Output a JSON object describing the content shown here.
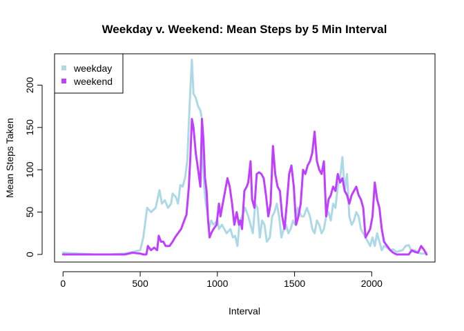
{
  "chart_data": {
    "type": "line",
    "title": "Weekday v. Weekend: Mean Steps by 5 Min Interval",
    "xlabel": "Interval",
    "ylabel": "Mean Steps Taken",
    "xlim": [
      -55,
      2410
    ],
    "ylim": [
      -9,
      237
    ],
    "xticks": [
      0,
      500,
      1000,
      1500,
      2000
    ],
    "yticks": [
      0,
      50,
      100,
      150,
      200
    ],
    "grid": false,
    "legend_position": "top-left",
    "series": [
      {
        "name": "weekday",
        "color": "#ADD8E6",
        "points": [
          [
            0,
            2
          ],
          [
            100,
            1
          ],
          [
            200,
            0
          ],
          [
            300,
            0
          ],
          [
            400,
            1
          ],
          [
            450,
            3
          ],
          [
            500,
            5
          ],
          [
            520,
            20
          ],
          [
            545,
            55
          ],
          [
            570,
            50
          ],
          [
            600,
            55
          ],
          [
            625,
            76
          ],
          [
            640,
            60
          ],
          [
            660,
            64
          ],
          [
            680,
            55
          ],
          [
            700,
            60
          ],
          [
            710,
            72
          ],
          [
            730,
            68
          ],
          [
            745,
            60
          ],
          [
            760,
            82
          ],
          [
            775,
            80
          ],
          [
            790,
            90
          ],
          [
            805,
            110
          ],
          [
            815,
            155
          ],
          [
            825,
            195
          ],
          [
            835,
            230
          ],
          [
            845,
            190
          ],
          [
            860,
            185
          ],
          [
            875,
            175
          ],
          [
            890,
            170
          ],
          [
            900,
            160
          ],
          [
            905,
            110
          ],
          [
            915,
            80
          ],
          [
            925,
            60
          ],
          [
            935,
            50
          ],
          [
            945,
            30
          ],
          [
            960,
            40
          ],
          [
            975,
            35
          ],
          [
            990,
            38
          ],
          [
            1000,
            41
          ],
          [
            1010,
            30
          ],
          [
            1030,
            35
          ],
          [
            1060,
            25
          ],
          [
            1085,
            30
          ],
          [
            1100,
            20
          ],
          [
            1115,
            22
          ],
          [
            1130,
            10
          ],
          [
            1145,
            40
          ],
          [
            1160,
            45
          ],
          [
            1180,
            55
          ],
          [
            1200,
            45
          ],
          [
            1215,
            35
          ],
          [
            1230,
            25
          ],
          [
            1245,
            60
          ],
          [
            1260,
            55
          ],
          [
            1275,
            20
          ],
          [
            1290,
            40
          ],
          [
            1305,
            35
          ],
          [
            1320,
            15
          ],
          [
            1340,
            20
          ],
          [
            1355,
            45
          ],
          [
            1370,
            50
          ],
          [
            1385,
            60
          ],
          [
            1400,
            45
          ],
          [
            1415,
            20
          ],
          [
            1430,
            30
          ],
          [
            1445,
            35
          ],
          [
            1460,
            25
          ],
          [
            1475,
            30
          ],
          [
            1490,
            40
          ],
          [
            1505,
            35
          ],
          [
            1520,
            55
          ],
          [
            1545,
            45
          ],
          [
            1560,
            45
          ],
          [
            1580,
            55
          ],
          [
            1600,
            45
          ],
          [
            1615,
            30
          ],
          [
            1630,
            25
          ],
          [
            1645,
            40
          ],
          [
            1660,
            35
          ],
          [
            1675,
            25
          ],
          [
            1690,
            30
          ],
          [
            1705,
            45
          ],
          [
            1720,
            50
          ],
          [
            1735,
            40
          ],
          [
            1750,
            60
          ],
          [
            1765,
            55
          ],
          [
            1780,
            80
          ],
          [
            1795,
            90
          ],
          [
            1810,
            115
          ],
          [
            1825,
            75
          ],
          [
            1840,
            95
          ],
          [
            1855,
            45
          ],
          [
            1870,
            35
          ],
          [
            1885,
            40
          ],
          [
            1900,
            50
          ],
          [
            1915,
            45
          ],
          [
            1930,
            30
          ],
          [
            1945,
            25
          ],
          [
            1960,
            20
          ],
          [
            1975,
            15
          ],
          [
            1990,
            10
          ],
          [
            2005,
            20
          ],
          [
            2020,
            10
          ],
          [
            2035,
            25
          ],
          [
            2050,
            15
          ],
          [
            2065,
            5
          ],
          [
            2080,
            10
          ],
          [
            2100,
            8
          ],
          [
            2120,
            5
          ],
          [
            2140,
            6
          ],
          [
            2160,
            3
          ],
          [
            2180,
            4
          ],
          [
            2200,
            5
          ],
          [
            2220,
            10
          ],
          [
            2240,
            11
          ],
          [
            2260,
            3
          ],
          [
            2280,
            5
          ],
          [
            2300,
            2
          ],
          [
            2320,
            1
          ],
          [
            2340,
            1
          ],
          [
            2355,
            2
          ]
        ]
      },
      {
        "name": "weekend",
        "color": "#BF3EFF",
        "points": [
          [
            0,
            0
          ],
          [
            100,
            0
          ],
          [
            200,
            0
          ],
          [
            300,
            0
          ],
          [
            400,
            0
          ],
          [
            450,
            2
          ],
          [
            500,
            1
          ],
          [
            520,
            0
          ],
          [
            540,
            0
          ],
          [
            550,
            10
          ],
          [
            570,
            5
          ],
          [
            590,
            8
          ],
          [
            610,
            5
          ],
          [
            620,
            22
          ],
          [
            635,
            15
          ],
          [
            650,
            15
          ],
          [
            665,
            10
          ],
          [
            690,
            10
          ],
          [
            710,
            15
          ],
          [
            725,
            20
          ],
          [
            745,
            25
          ],
          [
            765,
            30
          ],
          [
            785,
            40
          ],
          [
            800,
            47
          ],
          [
            815,
            80
          ],
          [
            825,
            115
          ],
          [
            835,
            160
          ],
          [
            845,
            150
          ],
          [
            860,
            120
          ],
          [
            875,
            100
          ],
          [
            890,
            80
          ],
          [
            900,
            160
          ],
          [
            910,
            135
          ],
          [
            920,
            90
          ],
          [
            930,
            75
          ],
          [
            940,
            40
          ],
          [
            950,
            20
          ],
          [
            960,
            25
          ],
          [
            975,
            30
          ],
          [
            995,
            35
          ],
          [
            1010,
            60
          ],
          [
            1020,
            45
          ],
          [
            1030,
            55
          ],
          [
            1045,
            70
          ],
          [
            1065,
            90
          ],
          [
            1080,
            80
          ],
          [
            1095,
            60
          ],
          [
            1110,
            35
          ],
          [
            1125,
            50
          ],
          [
            1140,
            35
          ],
          [
            1150,
            40
          ],
          [
            1160,
            30
          ],
          [
            1175,
            75
          ],
          [
            1190,
            80
          ],
          [
            1200,
            85
          ],
          [
            1215,
            110
          ],
          [
            1225,
            65
          ],
          [
            1240,
            55
          ],
          [
            1255,
            95
          ],
          [
            1270,
            97
          ],
          [
            1285,
            95
          ],
          [
            1300,
            90
          ],
          [
            1315,
            70
          ],
          [
            1330,
            45
          ],
          [
            1345,
            60
          ],
          [
            1360,
            128
          ],
          [
            1375,
            95
          ],
          [
            1390,
            80
          ],
          [
            1405,
            75
          ],
          [
            1420,
            45
          ],
          [
            1435,
            30
          ],
          [
            1450,
            60
          ],
          [
            1465,
            95
          ],
          [
            1480,
            105
          ],
          [
            1495,
            80
          ],
          [
            1510,
            35
          ],
          [
            1525,
            45
          ],
          [
            1540,
            60
          ],
          [
            1555,
            100
          ],
          [
            1570,
            95
          ],
          [
            1585,
            105
          ],
          [
            1600,
            110
          ],
          [
            1615,
            120
          ],
          [
            1630,
            145
          ],
          [
            1645,
            110
          ],
          [
            1660,
            100
          ],
          [
            1675,
            95
          ],
          [
            1690,
            110
          ],
          [
            1705,
            45
          ],
          [
            1720,
            65
          ],
          [
            1735,
            70
          ],
          [
            1750,
            80
          ],
          [
            1765,
            75
          ],
          [
            1780,
            95
          ],
          [
            1795,
            85
          ],
          [
            1810,
            90
          ],
          [
            1825,
            75
          ],
          [
            1840,
            70
          ],
          [
            1855,
            60
          ],
          [
            1870,
            70
          ],
          [
            1885,
            75
          ],
          [
            1900,
            80
          ],
          [
            1915,
            70
          ],
          [
            1930,
            65
          ],
          [
            1945,
            55
          ],
          [
            1960,
            20
          ],
          [
            1975,
            25
          ],
          [
            1990,
            30
          ],
          [
            2005,
            45
          ],
          [
            2020,
            85
          ],
          [
            2035,
            65
          ],
          [
            2050,
            55
          ],
          [
            2065,
            30
          ],
          [
            2080,
            15
          ],
          [
            2100,
            10
          ],
          [
            2120,
            5
          ],
          [
            2140,
            2
          ],
          [
            2160,
            0
          ],
          [
            2180,
            0
          ],
          [
            2200,
            0
          ],
          [
            2220,
            0
          ],
          [
            2240,
            0
          ],
          [
            2260,
            5
          ],
          [
            2280,
            3
          ],
          [
            2300,
            2
          ],
          [
            2320,
            10
          ],
          [
            2340,
            5
          ],
          [
            2355,
            0
          ]
        ]
      }
    ]
  }
}
